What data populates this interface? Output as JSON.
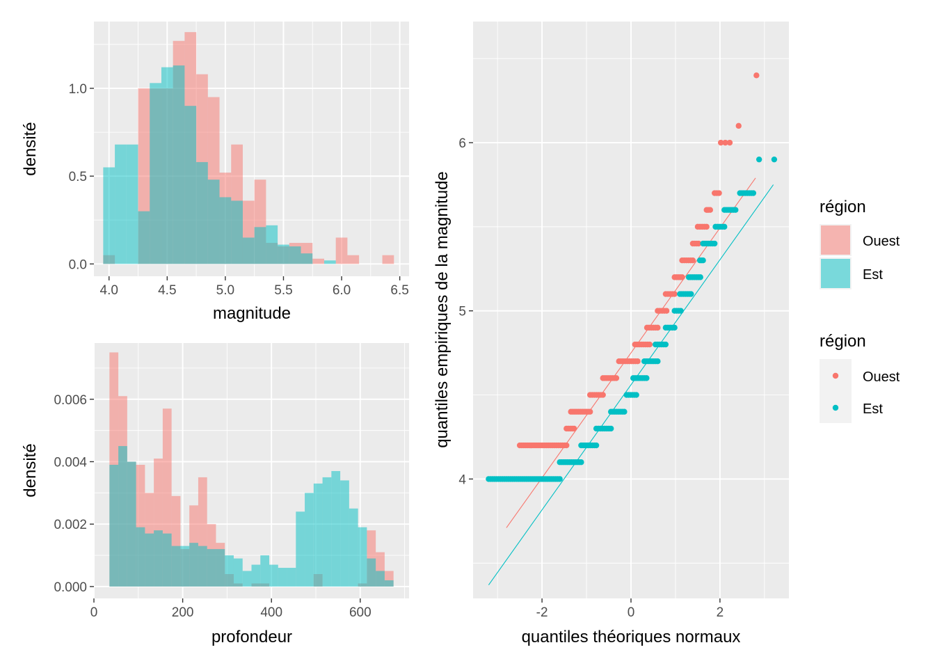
{
  "chart_data": [
    {
      "type": "histogram",
      "xlabel": "magnitude",
      "ylabel": "densité",
      "xlim": [
        3.87,
        6.58
      ],
      "ylim": [
        -0.07,
        1.38
      ],
      "xticks": [
        "4.0",
        "4.5",
        "5.0",
        "5.5",
        "6.0",
        "6.5"
      ],
      "yticks": [
        "0.0",
        "0.5",
        "1.0"
      ],
      "bin_width": 0.1,
      "bin_starts": [
        3.95,
        4.05,
        4.15,
        4.25,
        4.35,
        4.45,
        4.55,
        4.65,
        4.75,
        4.85,
        4.95,
        5.05,
        5.15,
        5.25,
        5.35,
        5.45,
        5.55,
        5.65,
        5.75,
        5.85,
        5.95,
        6.05,
        6.15,
        6.25,
        6.35
      ],
      "series": [
        {
          "name": "Ouest",
          "color": "#F8766D",
          "values": [
            0.05,
            0,
            0,
            1.0,
            1.0,
            1.0,
            1.27,
            1.32,
            1.08,
            0.95,
            0.52,
            0.68,
            0.36,
            0.48,
            0.12,
            0.1,
            0.12,
            0.12,
            0.03,
            0,
            0.15,
            0.05,
            0,
            0,
            0.05
          ]
        },
        {
          "name": "Est",
          "color": "#00BFC4",
          "values": [
            0.55,
            0.68,
            0.68,
            0.3,
            1.03,
            1.12,
            1.13,
            0.9,
            0.58,
            0.48,
            0.38,
            0.36,
            0.15,
            0.21,
            0.22,
            0.11,
            0.1,
            0.06,
            0,
            0.02,
            0,
            0,
            0,
            0,
            0
          ]
        }
      ]
    },
    {
      "type": "histogram",
      "xlabel": "profondeur",
      "ylabel": "densité",
      "xlim": [
        0,
        710
      ],
      "ylim": [
        -0.00038,
        0.0078
      ],
      "xticks": [
        "0",
        "200",
        "400",
        "600"
      ],
      "yticks": [
        "0.000",
        "0.002",
        "0.004",
        "0.006"
      ],
      "bin_width": 20,
      "bin_starts": [
        35,
        55,
        75,
        95,
        115,
        135,
        155,
        175,
        195,
        215,
        235,
        255,
        275,
        295,
        315,
        335,
        355,
        375,
        395,
        415,
        435,
        455,
        475,
        495,
        515,
        535,
        555,
        575,
        595,
        615,
        635,
        655,
        675
      ],
      "series": [
        {
          "name": "Ouest",
          "color": "#F8766D",
          "values": [
            0.0075,
            0.0061,
            0.004,
            0.0039,
            0.003,
            0.0041,
            0.0057,
            0.0029,
            0.0012,
            0.0026,
            0.0035,
            0.002,
            0.0014,
            0.0004,
            0.0001,
            0,
            0.0001,
            0.0001,
            0,
            0,
            0,
            0,
            0,
            0.0004,
            0,
            0,
            0,
            0,
            0.0001,
            0.0018,
            0.0011,
            0.0005,
            0
          ]
        },
        {
          "name": "Est",
          "color": "#00BFC4",
          "values": [
            0.0039,
            0.0045,
            0.004,
            0.0019,
            0.0017,
            0.0018,
            0.0017,
            0.0013,
            0.0013,
            0.0014,
            0.0013,
            0.0012,
            0.0012,
            0.001,
            0.0009,
            0.0005,
            0.0007,
            0.001,
            0.0007,
            0.0006,
            0.0006,
            0.0024,
            0.003,
            0.0033,
            0.0035,
            0.0037,
            0.0034,
            0.0025,
            0.0019,
            0.0009,
            0.0005,
            0.0002,
            0
          ]
        }
      ]
    },
    {
      "type": "scatter",
      "xlabel": "quantiles théoriques normaux",
      "ylabel": "quantiles empiriques de la magnitude",
      "xlim": [
        -3.55,
        3.55
      ],
      "ylim": [
        3.29,
        6.72
      ],
      "xticks": [
        "-2",
        "0",
        "2"
      ],
      "yticks": [
        "4",
        "5",
        "6"
      ],
      "series": [
        {
          "name": "Ouest",
          "color": "#F8766D",
          "steps": [
            [
              4.2,
              -2.5,
              -1.45
            ],
            [
              4.3,
              -1.45,
              -1.28
            ],
            [
              4.4,
              -1.35,
              -0.92
            ],
            [
              4.5,
              -0.92,
              -0.63
            ],
            [
              4.6,
              -0.63,
              -0.33
            ],
            [
              4.7,
              -0.27,
              0.15
            ],
            [
              4.8,
              0.09,
              0.42
            ],
            [
              4.9,
              0.36,
              0.6
            ],
            [
              5.0,
              0.6,
              0.8
            ],
            [
              5.1,
              0.78,
              0.98
            ],
            [
              5.2,
              0.98,
              1.15
            ],
            [
              5.3,
              1.15,
              1.39
            ],
            [
              5.4,
              1.39,
              1.52
            ],
            [
              5.5,
              1.5,
              1.7
            ],
            [
              5.6,
              1.7,
              1.78
            ],
            [
              5.7,
              1.88,
              1.98
            ]
          ],
          "extra_points": [
            [
              2.02,
              6.0
            ],
            [
              2.12,
              6.0
            ],
            [
              2.22,
              6.0
            ],
            [
              2.42,
              6.1
            ],
            [
              2.82,
              6.4
            ]
          ],
          "qq_line": [
            [
              -2.8,
              3.71
            ],
            [
              2.8,
              5.79
            ]
          ]
        },
        {
          "name": "Est",
          "color": "#00BFC4",
          "steps": [
            [
              4.0,
              -3.2,
              -1.6
            ],
            [
              4.1,
              -1.6,
              -1.12
            ],
            [
              4.2,
              -1.12,
              -0.78
            ],
            [
              4.3,
              -0.78,
              -0.45
            ],
            [
              4.4,
              -0.45,
              -0.15
            ],
            [
              4.5,
              -0.1,
              0.12
            ],
            [
              4.6,
              0.05,
              0.35
            ],
            [
              4.7,
              0.3,
              0.6
            ],
            [
              4.8,
              0.55,
              0.78
            ],
            [
              4.9,
              0.78,
              0.98
            ],
            [
              5.0,
              0.98,
              1.12
            ],
            [
              5.1,
              1.1,
              1.35
            ],
            [
              5.2,
              1.3,
              1.56
            ],
            [
              5.3,
              1.55,
              1.62
            ],
            [
              5.4,
              1.62,
              1.88
            ],
            [
              5.5,
              1.9,
              2.1
            ],
            [
              5.6,
              2.1,
              2.35
            ],
            [
              5.7,
              2.45,
              2.75
            ]
          ],
          "extra_points": [
            [
              2.88,
              5.9
            ],
            [
              3.22,
              5.9
            ]
          ],
          "qq_line": [
            [
              -3.2,
              3.37
            ],
            [
              3.2,
              5.75
            ]
          ]
        }
      ]
    }
  ],
  "legends": [
    {
      "title": "région",
      "items": [
        {
          "label": "Ouest",
          "color": "#F8766D"
        },
        {
          "label": "Est",
          "color": "#00BFC4"
        }
      ]
    },
    {
      "title": "région",
      "items": [
        {
          "label": "Ouest",
          "color": "#F8766D"
        },
        {
          "label": "Est",
          "color": "#00BFC4"
        }
      ]
    }
  ]
}
